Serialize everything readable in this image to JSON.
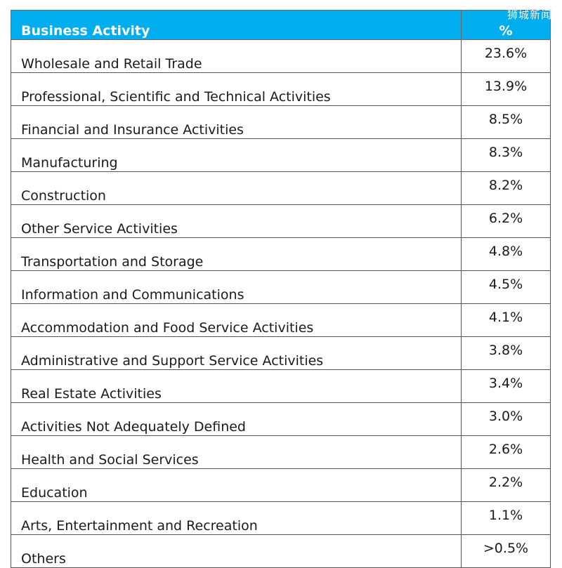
{
  "watermark": "狮城新闻",
  "table": {
    "header": {
      "activity": "Business Activity",
      "pct": "%"
    },
    "rows": [
      {
        "activity": "Wholesale and Retail Trade",
        "pct": "23.6%"
      },
      {
        "activity": "Professional, Scientific and Technical Activities",
        "pct": "13.9%"
      },
      {
        "activity": "Financial and Insurance Activities",
        "pct": "8.5%"
      },
      {
        "activity": "Manufacturing",
        "pct": "8.3%"
      },
      {
        "activity": "Construction",
        "pct": "8.2%"
      },
      {
        "activity": "Other Service Activities",
        "pct": "6.2%"
      },
      {
        "activity": "Transportation and Storage",
        "pct": "4.8%"
      },
      {
        "activity": "Information and Communications",
        "pct": "4.5%"
      },
      {
        "activity": "Accommodation and Food Service Activities",
        "pct": "4.1%"
      },
      {
        "activity": "Administrative and Support Service Activities",
        "pct": "3.8%"
      },
      {
        "activity": "Real Estate Activities",
        "pct": "3.4%"
      },
      {
        "activity": "Activities Not Adequately Defined",
        "pct": "3.0%"
      },
      {
        "activity": "Health and Social Services",
        "pct": "2.6%"
      },
      {
        "activity": "Education",
        "pct": "2.2%"
      },
      {
        "activity": "Arts, Entertainment and Recreation",
        "pct": "1.1%"
      },
      {
        "activity": "Others",
        "pct": ">0.5%"
      }
    ]
  },
  "colors": {
    "header_bg": "#00AEEF",
    "header_text": "#FFFFFF",
    "border": "#555555"
  }
}
